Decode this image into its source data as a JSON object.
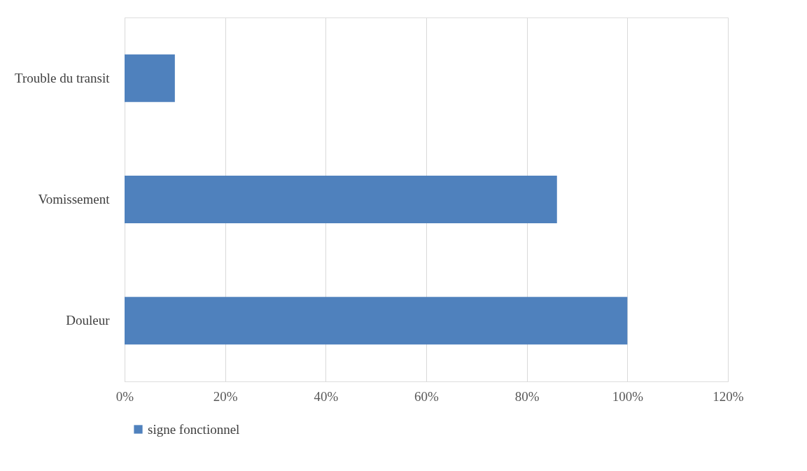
{
  "chart_data": {
    "type": "bar",
    "orientation": "horizontal",
    "categories": [
      "Trouble du transit",
      "Vomissement",
      "Douleur"
    ],
    "series": [
      {
        "name": "signe fonctionnel",
        "color": "#4f81bd",
        "values": [
          10,
          86,
          100
        ]
      }
    ],
    "xlim": [
      0,
      120
    ],
    "xticks": [
      {
        "value": 0,
        "label": "0%"
      },
      {
        "value": 20,
        "label": "20%"
      },
      {
        "value": 40,
        "label": "40%"
      },
      {
        "value": 60,
        "label": "60%"
      },
      {
        "value": 80,
        "label": "80%"
      },
      {
        "value": 100,
        "label": "100%"
      },
      {
        "value": 120,
        "label": "120%"
      }
    ],
    "grid": "x",
    "legend": "bottom"
  }
}
